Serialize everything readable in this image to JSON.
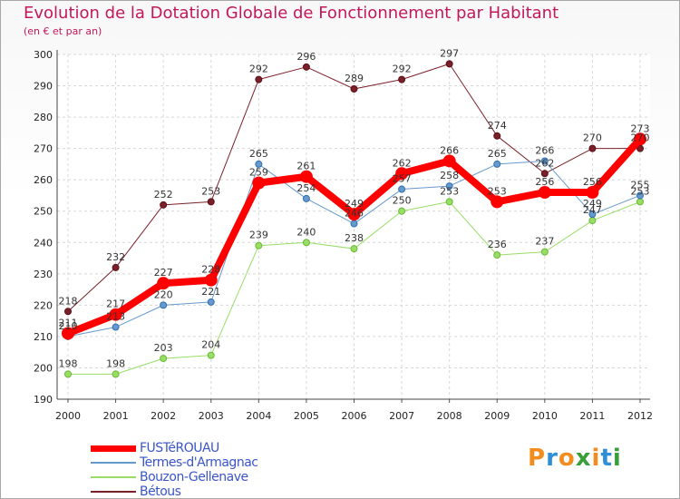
{
  "title": "Evolution de la Dotation Globale de Fonctionnement par Habitant",
  "subtitle": "(en € et par an)",
  "logo": {
    "text": "Proxiti",
    "letters": [
      "P",
      "r",
      "o",
      "x",
      "i",
      "t",
      "i"
    ],
    "colors": [
      "#f28c1e",
      "#2f8fd6",
      "#f28c1e",
      "#3a9f3a",
      "#f28c1e",
      "#2f8fd6",
      "#3a9f3a"
    ]
  },
  "chart_data": {
    "type": "line",
    "title": "Evolution de la Dotation Globale de Fonctionnement par Habitant",
    "xlabel": "",
    "ylabel": "(en € et par an)",
    "ylim": [
      190,
      300
    ],
    "yticks": [
      190,
      200,
      210,
      220,
      230,
      240,
      250,
      260,
      270,
      280,
      290,
      300
    ],
    "categories": [
      "2000",
      "2001",
      "2002",
      "2003",
      "2004",
      "2005",
      "2006",
      "2007",
      "2008",
      "2009",
      "2010",
      "2011",
      "2012"
    ],
    "grid": true,
    "legend_position": "bottom-left",
    "series": [
      {
        "name": "Bétous",
        "color": "#7b2028",
        "width": 1,
        "values": [
          218,
          232,
          252,
          253,
          292,
          296,
          289,
          292,
          297,
          274,
          262,
          270,
          270
        ]
      },
      {
        "name": "Bouzon-Gellenave",
        "color": "#99dd66",
        "width": 1,
        "values": [
          198,
          198,
          203,
          204,
          239,
          240,
          238,
          250,
          253,
          236,
          237,
          247,
          253
        ]
      },
      {
        "name": "Termes-d'Armagnac",
        "color": "#6699cc",
        "width": 1,
        "values": [
          210,
          213,
          220,
          221,
          265,
          254,
          246,
          257,
          258,
          265,
          266,
          249,
          255
        ]
      },
      {
        "name": "FUSTéROUAU",
        "color": "#ff0000",
        "width": 8,
        "values": [
          211,
          217,
          227,
          228,
          259,
          261,
          249,
          262,
          266,
          253,
          256,
          256,
          273
        ]
      }
    ],
    "legend": [
      "FUSTéROUAU",
      "Termes-d'Armagnac",
      "Bouzon-Gellenave",
      "Bétous"
    ]
  }
}
